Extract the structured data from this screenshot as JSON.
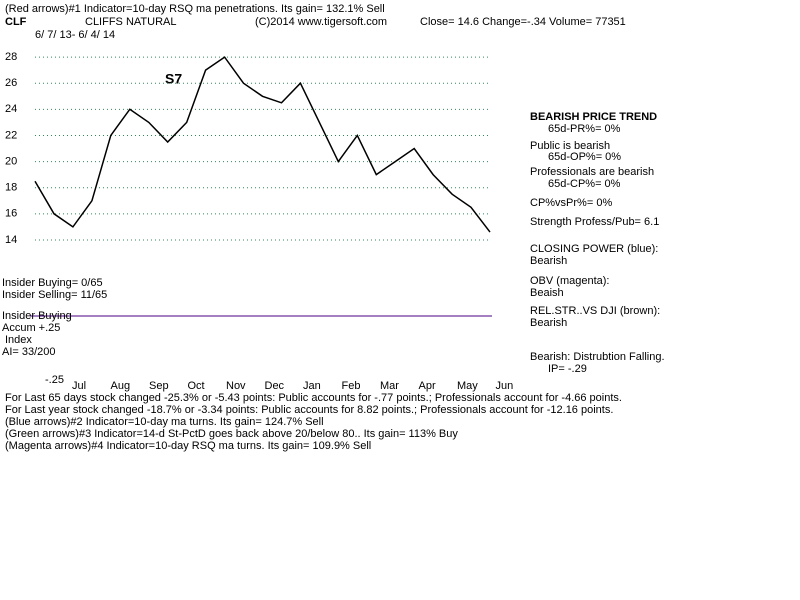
{
  "header": {
    "indicator1": "(Red arrows)#1 Indicator=10-day RSQ ma penetrations. Its gain= 132.1% Sell",
    "ticker": "CLF",
    "company": "CLIFFS NATURAL",
    "copyright": "(C)2014 www.tigersoft.com",
    "quote": "Close=  14.6  Change=-.34 Volume= 77351",
    "range": "6/ 7/ 13- 6/ 4/ 14"
  },
  "side": [
    "BEARISH PRICE TREND",
    "65d-PR%= 0%",
    "Public is bearish",
    "65d-OP%= 0%",
    "Professionals are bearish",
    "65d-CP%= 0%",
    "CP%vsPr%=  0%",
    "Strength Profess/Pub= 6.1",
    "CLOSING POWER (blue):",
    "Bearish",
    "OBV (magenta):",
    "Beaish",
    "REL.STR..VS DJI (brown):",
    "Bearish",
    "Bearish: Distrubtion Falling.",
    "IP= -.29"
  ],
  "left": [
    "Insider Buying= 0/65",
    "Insider Selling= 11/65",
    "Insider Buying",
    "Accum  +.25",
    "Index",
    "AI= 33/200",
    "-.25"
  ],
  "annotation": "S7",
  "footer": [
    "For Last 65 days stock changed -25.3% or -5.43 points:  Public accounts for -.77 points.;  Professionals account for -4.66 points.",
    "For Last year stock changed -18.7% or -3.34 points:  Public accounts for  8.82 points.;  Professionals account for -12.16 points.",
    "(Blue arrows)#2 Indicator=10-day ma turns. Its gain= 124.7% Sell",
    "(Green arrows)#3 Indicator=14-d St-PctD  goes back above 20/below 80.. Its gain= 113% Buy",
    "(Magenta arrows)#4 Indicator=10-day RSQ ma turns. Its gain= 109.9% Sell"
  ],
  "chart_data": {
    "type": "line",
    "color": "#000000",
    "values": [
      18.5,
      16,
      15,
      17,
      22,
      24,
      23,
      21.5,
      23,
      27,
      28,
      26,
      25,
      24.5,
      26,
      23,
      20,
      22,
      19,
      20,
      21,
      19,
      17.5,
      16.5,
      14.6
    ],
    "month_labels": [
      "Jul",
      "Aug",
      "Sep",
      "Oct",
      "Nov",
      "Dec",
      "Jan",
      "Feb",
      "Mar",
      "Apr",
      "May",
      "Jun"
    ],
    "ylim": [
      13,
      29
    ],
    "yticks": [
      14,
      16,
      18,
      20,
      22,
      24,
      26,
      28
    ],
    "grid": true,
    "grid_color": "#2e8b57"
  }
}
